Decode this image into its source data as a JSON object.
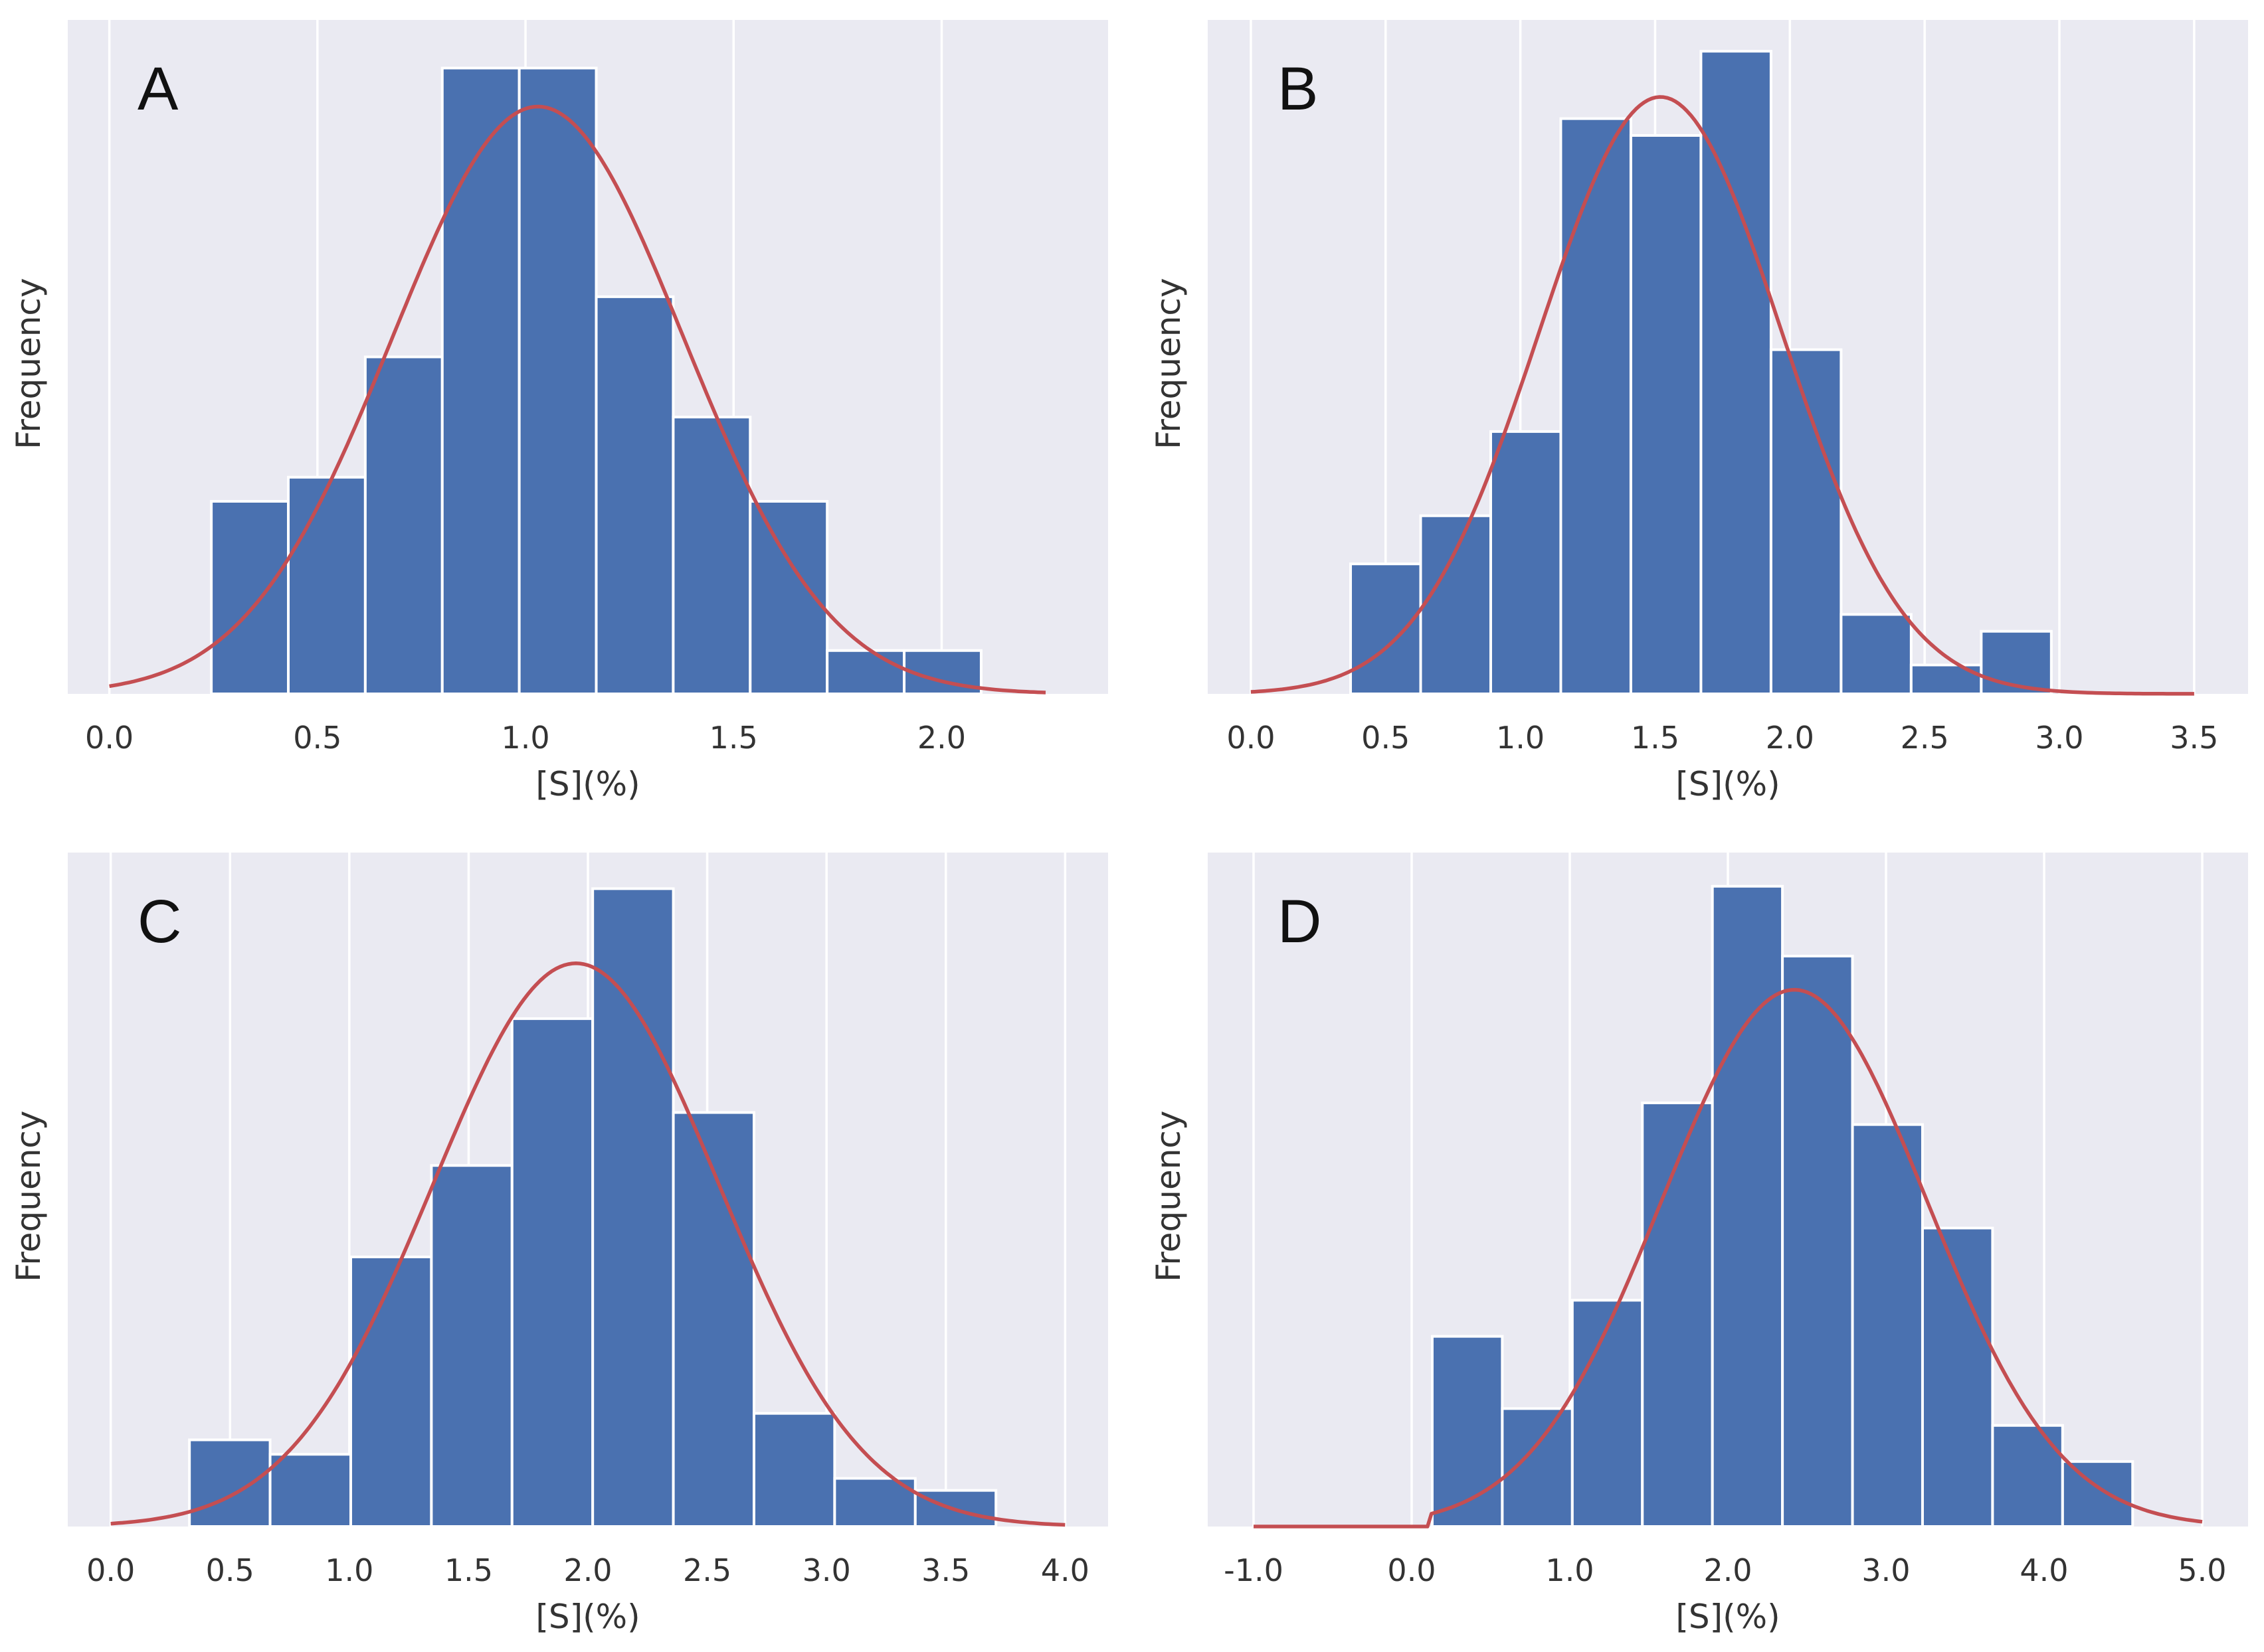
{
  "colors": {
    "plot_background": "#eaeaf2",
    "grid": "#ffffff",
    "bar_fill": "#4a71b0",
    "bar_edge": "#ffffff",
    "curve": "#c44e52",
    "text": "#333333"
  },
  "chart_data": [
    {
      "type": "bar",
      "panel_label": "A",
      "xlabel": "[S](%)",
      "ylabel": "Frequency",
      "xlim": [
        -0.1,
        2.4
      ],
      "xticks": [
        0.0,
        0.5,
        1.0,
        1.5,
        2.0
      ],
      "xtick_labels": [
        "0.0",
        "0.5",
        "1.0",
        "1.5",
        "2.0"
      ],
      "ylim": [
        0,
        28
      ],
      "yticks_visible": false,
      "grid": "vertical",
      "bins": [
        {
          "x0": 0.245,
          "x1": 0.43,
          "value": 8
        },
        {
          "x0": 0.43,
          "x1": 0.615,
          "value": 9
        },
        {
          "x0": 0.615,
          "x1": 0.8,
          "value": 14
        },
        {
          "x0": 0.8,
          "x1": 0.985,
          "value": 26
        },
        {
          "x0": 0.985,
          "x1": 1.17,
          "value": 26
        },
        {
          "x0": 1.17,
          "x1": 1.355,
          "value": 16.5
        },
        {
          "x0": 1.355,
          "x1": 1.54,
          "value": 11.5
        },
        {
          "x0": 1.54,
          "x1": 1.725,
          "value": 8
        },
        {
          "x0": 1.725,
          "x1": 1.91,
          "value": 1.8
        },
        {
          "x0": 1.91,
          "x1": 2.095,
          "value": 1.8
        }
      ],
      "fit_curve": {
        "type": "normal",
        "mean": 1.03,
        "sd": 0.35,
        "peak": 24.4,
        "x_from": 0.0,
        "x_to": 2.25
      }
    },
    {
      "type": "bar",
      "panel_label": "B",
      "xlabel": "[S](%)",
      "ylabel": "Frequency",
      "xlim": [
        -0.16,
        3.7
      ],
      "xticks": [
        0.0,
        0.5,
        1.0,
        1.5,
        2.0,
        2.5,
        3.0,
        3.5
      ],
      "xtick_labels": [
        "0.0",
        "0.5",
        "1.0",
        "1.5",
        "2.0",
        "2.5",
        "3.0",
        "3.5"
      ],
      "ylim": [
        0,
        28
      ],
      "yticks_visible": false,
      "grid": "vertical",
      "bins": [
        {
          "x0": 0.37,
          "x1": 0.63,
          "value": 5.4
        },
        {
          "x0": 0.63,
          "x1": 0.89,
          "value": 7.4
        },
        {
          "x0": 0.89,
          "x1": 1.15,
          "value": 10.9
        },
        {
          "x0": 1.15,
          "x1": 1.41,
          "value": 23.9
        },
        {
          "x0": 1.41,
          "x1": 1.67,
          "value": 23.2
        },
        {
          "x0": 1.67,
          "x1": 1.93,
          "value": 26.7
        },
        {
          "x0": 1.93,
          "x1": 2.19,
          "value": 14.3
        },
        {
          "x0": 2.19,
          "x1": 2.45,
          "value": 3.3
        },
        {
          "x0": 2.45,
          "x1": 2.71,
          "value": 1.2
        },
        {
          "x0": 2.71,
          "x1": 2.97,
          "value": 2.6
        }
      ],
      "fit_curve": {
        "type": "normal",
        "mean": 1.52,
        "sd": 0.45,
        "peak": 24.8,
        "x_from": 0.0,
        "x_to": 3.5
      }
    },
    {
      "type": "bar",
      "panel_label": "C",
      "xlabel": "[S](%)",
      "ylabel": "Frequency",
      "xlim": [
        -0.18,
        4.18
      ],
      "xticks": [
        0.0,
        0.5,
        1.0,
        1.5,
        2.0,
        2.5,
        3.0,
        3.5,
        4.0
      ],
      "xtick_labels": [
        "0.0",
        "0.5",
        "1.0",
        "1.5",
        "2.0",
        "2.5",
        "3.0",
        "3.5",
        "4.0"
      ],
      "ylim": [
        0,
        28
      ],
      "yticks_visible": false,
      "grid": "vertical",
      "bins": [
        {
          "x0": 0.33,
          "x1": 0.668,
          "value": 3.6
        },
        {
          "x0": 0.668,
          "x1": 1.006,
          "value": 3.0
        },
        {
          "x0": 1.006,
          "x1": 1.344,
          "value": 11.2
        },
        {
          "x0": 1.344,
          "x1": 1.682,
          "value": 15.0
        },
        {
          "x0": 1.682,
          "x1": 2.02,
          "value": 21.1
        },
        {
          "x0": 2.02,
          "x1": 2.358,
          "value": 26.5
        },
        {
          "x0": 2.358,
          "x1": 2.696,
          "value": 17.2
        },
        {
          "x0": 2.696,
          "x1": 3.034,
          "value": 4.7
        },
        {
          "x0": 3.034,
          "x1": 3.372,
          "value": 2.0
        },
        {
          "x0": 3.372,
          "x1": 3.71,
          "value": 1.5
        }
      ],
      "fit_curve": {
        "type": "normal",
        "mean": 1.95,
        "sd": 0.6,
        "peak": 23.4,
        "x_from": 0.0,
        "x_to": 4.0
      }
    },
    {
      "type": "bar",
      "panel_label": "D",
      "xlabel": "[S](%)",
      "ylabel": "Frequency",
      "xlim": [
        -1.29,
        5.29
      ],
      "xticks": [
        -1.0,
        0.0,
        1.0,
        2.0,
        3.0,
        4.0,
        5.0
      ],
      "xtick_labels": [
        "-1.0",
        "0.0",
        "1.0",
        "2.0",
        "3.0",
        "4.0",
        "5.0"
      ],
      "ylim": [
        0,
        28
      ],
      "yticks_visible": false,
      "grid": "vertical",
      "bins": [
        {
          "x0": 0.13,
          "x1": 0.573,
          "value": 7.9
        },
        {
          "x0": 0.573,
          "x1": 1.016,
          "value": 4.9
        },
        {
          "x0": 1.016,
          "x1": 1.459,
          "value": 9.4
        },
        {
          "x0": 1.459,
          "x1": 1.902,
          "value": 17.6
        },
        {
          "x0": 1.902,
          "x1": 2.345,
          "value": 26.6
        },
        {
          "x0": 2.345,
          "x1": 2.788,
          "value": 23.7
        },
        {
          "x0": 2.788,
          "x1": 3.231,
          "value": 16.7
        },
        {
          "x0": 3.231,
          "x1": 3.674,
          "value": 12.4
        },
        {
          "x0": 3.674,
          "x1": 4.117,
          "value": 4.2
        },
        {
          "x0": 4.117,
          "x1": 4.56,
          "value": 2.7
        }
      ],
      "fit_curve": {
        "type": "truncated-normal",
        "mean": 2.42,
        "sd": 0.84,
        "peak": 22.3,
        "cut_at": 0.12,
        "x_from": -1.0,
        "x_to": 5.0
      }
    }
  ]
}
